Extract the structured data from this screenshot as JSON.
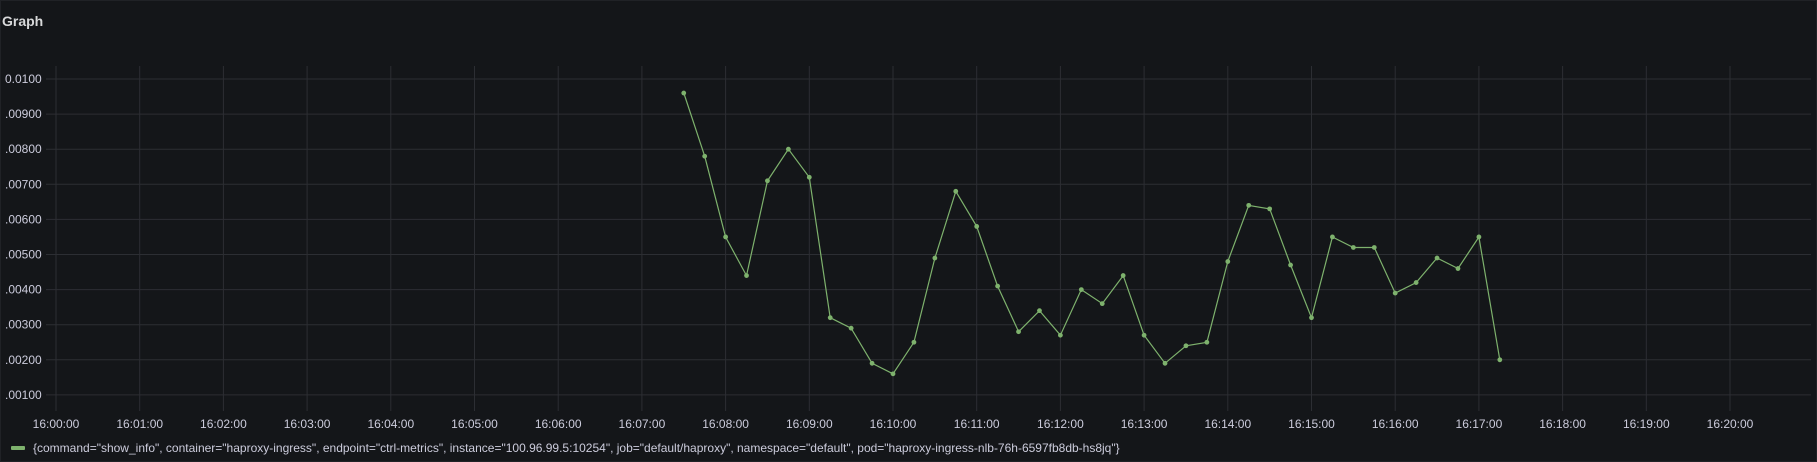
{
  "panel": {
    "title": "Graph"
  },
  "colors": {
    "series": "#7eb26d",
    "grid": "#2c2e33",
    "axis_text": "#ccccdc"
  },
  "chart_data": {
    "type": "line",
    "title": "Graph",
    "xlabel": "",
    "ylabel": "",
    "x_ticks": [
      "16:00:00",
      "16:01:00",
      "16:02:00",
      "16:03:00",
      "16:04:00",
      "16:05:00",
      "16:06:00",
      "16:07:00",
      "16:08:00",
      "16:09:00",
      "16:10:00",
      "16:11:00",
      "16:12:00",
      "16:13:00",
      "16:14:00",
      "16:15:00",
      "16:16:00",
      "16:17:00",
      "16:18:00",
      "16:19:00",
      "16:20:00"
    ],
    "y_ticks": [
      ".00100",
      ".00200",
      ".00300",
      ".00400",
      ".00500",
      ".00600",
      ".00700",
      ".00800",
      ".00900",
      "0.0100"
    ],
    "ylim": [
      0.0005,
      0.0105
    ],
    "grid": true,
    "legend_position": "bottom",
    "series": [
      {
        "name": "{command=\"show_info\", container=\"haproxy-ingress\", endpoint=\"ctrl-metrics\", instance=\"100.96.99.5:10254\", job=\"default/haproxy\", namespace=\"default\", pod=\"haproxy-ingress-nlb-76h-6597fb8db-hs8jq\"}",
        "x": [
          "16:07:30",
          "16:07:45",
          "16:08:00",
          "16:08:15",
          "16:08:30",
          "16:08:45",
          "16:09:00",
          "16:09:15",
          "16:09:30",
          "16:09:45",
          "16:10:00",
          "16:10:15",
          "16:10:30",
          "16:10:45",
          "16:11:00",
          "16:11:15",
          "16:11:30",
          "16:11:45",
          "16:12:00",
          "16:12:15",
          "16:12:30",
          "16:12:45",
          "16:13:00",
          "16:13:15",
          "16:13:30",
          "16:13:45",
          "16:14:00",
          "16:14:15",
          "16:14:30",
          "16:14:45",
          "16:15:00",
          "16:15:15",
          "16:15:30",
          "16:15:45",
          "16:16:00",
          "16:16:15",
          "16:16:30",
          "16:16:45",
          "16:17:00",
          "16:17:15"
        ],
        "values": [
          0.0096,
          0.0078,
          0.0055,
          0.0044,
          0.0071,
          0.008,
          0.0072,
          0.0032,
          0.0029,
          0.0019,
          0.0016,
          0.0025,
          0.0049,
          0.0068,
          0.0058,
          0.0041,
          0.0028,
          0.0034,
          0.0027,
          0.004,
          0.0036,
          0.0044,
          0.0027,
          0.0019,
          0.0024,
          0.0025,
          0.0048,
          0.0064,
          0.0063,
          0.0047,
          0.0032,
          0.0055,
          0.0052,
          0.0052,
          0.0039,
          0.0042,
          0.0049,
          0.0046,
          0.0055,
          0.002
        ]
      }
    ]
  }
}
